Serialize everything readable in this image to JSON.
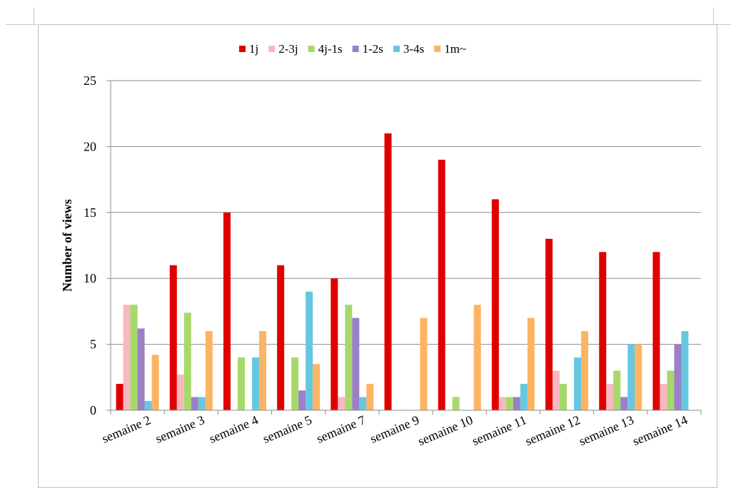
{
  "chart_data": {
    "type": "bar",
    "title": "",
    "xlabel": "",
    "ylabel": "Number of views",
    "ylim": [
      0,
      25
    ],
    "yticks": [
      0,
      5,
      10,
      15,
      20,
      25
    ],
    "grid": true,
    "legend_position": "top",
    "categories": [
      "semaine 2",
      "semaine 3",
      "semaine 4",
      "semaine 5",
      "semaine 7",
      "semaine 9",
      "semaine 10",
      "semaine 11",
      "semaine 12",
      "semaine 13",
      "semaine 14"
    ],
    "series": [
      {
        "name": "1j",
        "color": "#e00000",
        "values": [
          2,
          11,
          15,
          11,
          10,
          21,
          19,
          16,
          13,
          12,
          12
        ]
      },
      {
        "name": "2-3j",
        "color": "#f9b8c0",
        "values": [
          8,
          2.7,
          0,
          0,
          1,
          0,
          0,
          1,
          3,
          2,
          2
        ]
      },
      {
        "name": "4j-1s",
        "color": "#a6d96a",
        "values": [
          8,
          7.4,
          4,
          4,
          8,
          0,
          1,
          1,
          2,
          3,
          3
        ]
      },
      {
        "name": "1-2s",
        "color": "#9b7fc7",
        "values": [
          6.2,
          1,
          0,
          1.5,
          7,
          0,
          0,
          1,
          0,
          1,
          5
        ]
      },
      {
        "name": "3-4s",
        "color": "#66c8e0",
        "values": [
          0.7,
          1,
          4,
          9,
          1,
          0,
          0,
          2,
          4,
          5,
          6
        ]
      },
      {
        "name": "1m~",
        "color": "#fdb462",
        "values": [
          4.2,
          6,
          6,
          3.5,
          2,
          7,
          8,
          7,
          6,
          5,
          0
        ]
      }
    ]
  }
}
